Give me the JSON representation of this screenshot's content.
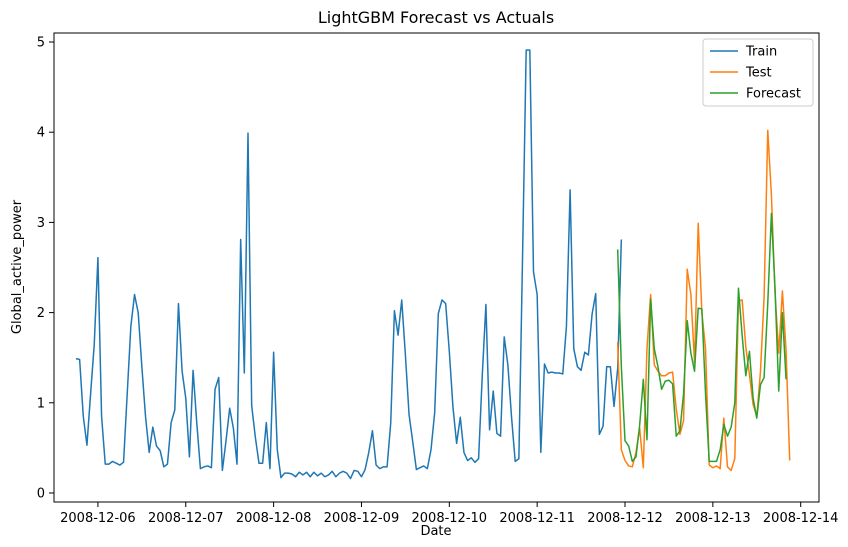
{
  "chart_data": {
    "type": "line",
    "title": "LightGBM Forecast vs Actuals",
    "xlabel": "Date",
    "ylabel": "Global_active_power",
    "xlim": [
      "2008-12-05 12:00",
      "2008-12-14 05:00"
    ],
    "ylim": [
      -0.1,
      5.1
    ],
    "x_ticks": [
      "2008-12-06",
      "2008-12-07",
      "2008-12-08",
      "2008-12-09",
      "2008-12-10",
      "2008-12-11",
      "2008-12-12",
      "2008-12-13",
      "2008-12-14"
    ],
    "y_ticks": [
      0,
      1,
      2,
      3,
      4,
      5
    ],
    "legend": {
      "placement": "top-right"
    },
    "grid": false,
    "series": [
      {
        "name": "Train",
        "color": "#1f77b4",
        "start": "2008-12-05 18:00",
        "step_hours": 1,
        "values": [
          1.49,
          1.48,
          0.85,
          0.53,
          1.1,
          1.65,
          2.61,
          0.85,
          0.32,
          0.32,
          0.35,
          0.33,
          0.31,
          0.34,
          1.1,
          1.85,
          2.2,
          2.0,
          1.4,
          0.85,
          0.45,
          0.73,
          0.52,
          0.47,
          0.29,
          0.32,
          0.78,
          0.92,
          2.1,
          1.35,
          1.05,
          0.4,
          1.36,
          0.78,
          0.27,
          0.29,
          0.3,
          0.28,
          1.15,
          1.28,
          0.25,
          0.58,
          0.94,
          0.72,
          0.32,
          2.81,
          1.33,
          3.99,
          0.97,
          0.62,
          0.33,
          0.33,
          0.78,
          0.27,
          1.56,
          0.48,
          0.17,
          0.22,
          0.22,
          0.21,
          0.18,
          0.23,
          0.2,
          0.23,
          0.18,
          0.23,
          0.19,
          0.22,
          0.18,
          0.2,
          0.24,
          0.18,
          0.22,
          0.24,
          0.22,
          0.16,
          0.25,
          0.24,
          0.18,
          0.26,
          0.45,
          0.69,
          0.31,
          0.27,
          0.29,
          0.29,
          0.78,
          2.02,
          1.75,
          2.14,
          1.53,
          0.87,
          0.57,
          0.26,
          0.28,
          0.3,
          0.27,
          0.48,
          0.89,
          1.99,
          2.14,
          2.1,
          1.57,
          0.95,
          0.55,
          0.84,
          0.45,
          0.36,
          0.39,
          0.34,
          0.38,
          1.3,
          2.09,
          0.7,
          1.13,
          0.66,
          0.63,
          1.73,
          1.42,
          0.84,
          0.35,
          0.38,
          2.6,
          4.91,
          4.91,
          2.45,
          2.2,
          0.45,
          1.43,
          1.33,
          1.34,
          1.33,
          1.33,
          1.32,
          1.85,
          3.36,
          1.6,
          1.4,
          1.36,
          1.56,
          1.53,
          1.98,
          2.21,
          0.65,
          0.74,
          1.4,
          1.4,
          0.96,
          1.38,
          2.81
        ]
      },
      {
        "name": "Test",
        "color": "#ff7f0e",
        "start": "2008-12-11 22:00",
        "step_hours": 1,
        "values": [
          1.67,
          0.48,
          0.36,
          0.3,
          0.29,
          0.45,
          0.72,
          0.28,
          1.6,
          2.2,
          1.42,
          1.35,
          1.3,
          1.3,
          1.33,
          1.34,
          0.93,
          0.65,
          0.8,
          2.48,
          2.2,
          1.44,
          2.99,
          2.0,
          1.6,
          0.31,
          0.28,
          0.3,
          0.27,
          0.83,
          0.29,
          0.25,
          0.38,
          2.13,
          2.14,
          1.62,
          1.31,
          0.98,
          0.85,
          1.34,
          2.17,
          4.02,
          3.3,
          2.21,
          1.55,
          2.24,
          1.58,
          0.36
        ]
      },
      {
        "name": "Forecast",
        "color": "#2ca02c",
        "start": "2008-12-11 22:00",
        "step_hours": 1,
        "values": [
          2.7,
          1.4,
          0.58,
          0.52,
          0.35,
          0.4,
          0.75,
          1.26,
          0.59,
          2.15,
          1.6,
          1.4,
          1.15,
          1.24,
          1.25,
          1.21,
          0.63,
          0.69,
          1.1,
          1.91,
          1.55,
          1.35,
          2.05,
          2.04,
          1.1,
          0.35,
          0.35,
          0.35,
          0.48,
          0.76,
          0.63,
          0.73,
          1.0,
          2.27,
          1.75,
          1.3,
          1.57,
          1.05,
          0.83,
          1.2,
          1.28,
          2.1,
          3.1,
          2.25,
          1.13,
          2.0,
          1.26
        ]
      }
    ]
  }
}
